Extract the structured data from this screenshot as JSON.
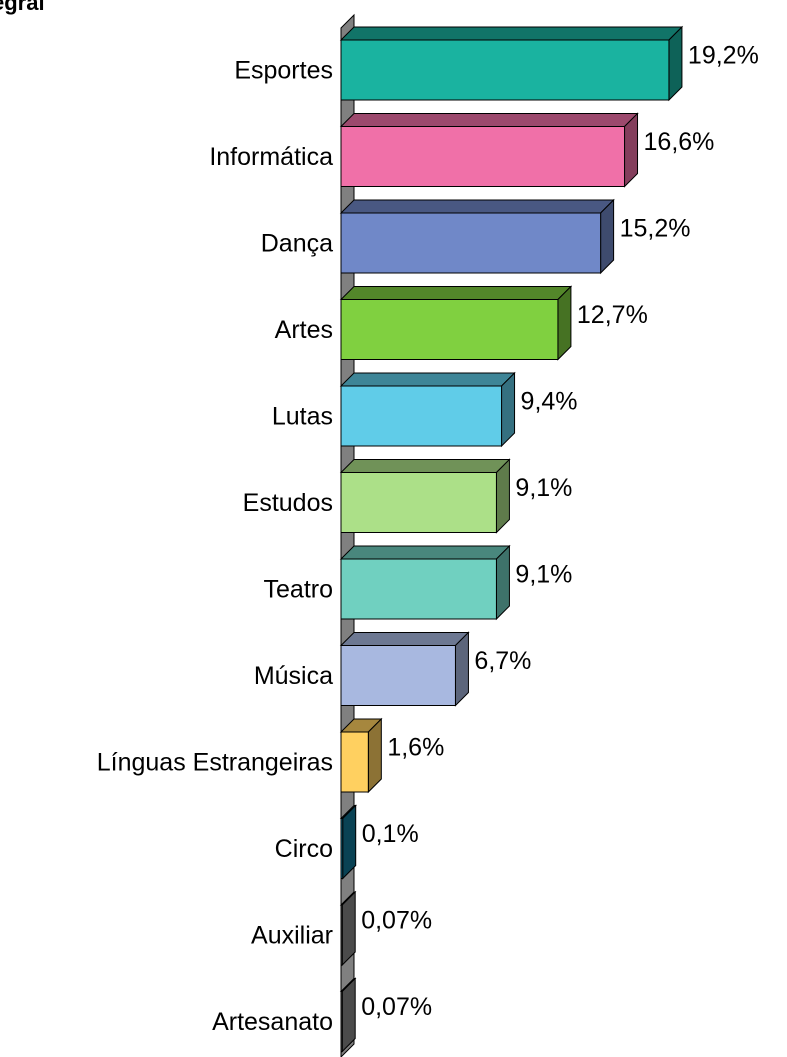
{
  "chart_data": {
    "type": "bar",
    "orientation": "horizontal",
    "title": "egral",
    "categories": [
      "Esportes",
      "Informática",
      "Dança",
      "Artes",
      "Lutas",
      "Estudos",
      "Teatro",
      "Música",
      "Línguas Estrangeiras",
      "Circo",
      "Auxiliar",
      "Artesanato"
    ],
    "values": [
      19.2,
      16.6,
      15.2,
      12.7,
      9.4,
      9.1,
      9.1,
      6.7,
      1.6,
      0.1,
      0.07,
      0.07
    ],
    "value_labels": [
      "19,2%",
      "16,6%",
      "15,2%",
      "12,7%",
      "9,4%",
      "9,1%",
      "9,1%",
      "6,7%",
      "1,6%",
      "0,1%",
      "0,07%",
      "0,07%"
    ],
    "colors": [
      "#1ab3a0",
      "#f070a8",
      "#7088c8",
      "#80d040",
      "#60cce8",
      "#ace088",
      "#70d0c0",
      "#a8b8e0",
      "#ffd060",
      "#107898",
      "#888888",
      "#888888"
    ]
  }
}
